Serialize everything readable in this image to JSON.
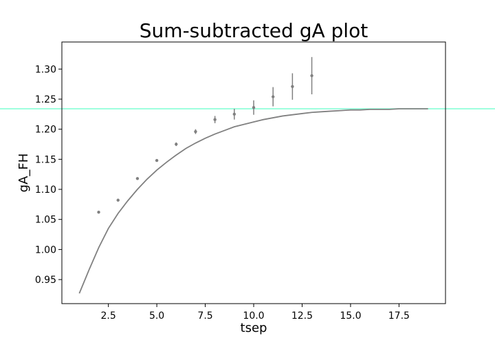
{
  "chart_data": {
    "type": "scatter",
    "title": "Sum-subtracted gA plot",
    "xlabel": "tsep",
    "ylabel": "gA_FH",
    "xlim": [
      0.1,
      19.9
    ],
    "ylim": [
      0.91,
      1.345
    ],
    "xticks": [
      2.5,
      5.0,
      7.5,
      10.0,
      12.5,
      15.0,
      17.5
    ],
    "xtick_labels": [
      "2.5",
      "5.0",
      "7.5",
      "10.0",
      "12.5",
      "15.0",
      "17.5"
    ],
    "yticks": [
      0.95,
      1.0,
      1.05,
      1.1,
      1.15,
      1.2,
      1.25,
      1.3
    ],
    "ytick_labels": [
      "0.95",
      "1.00",
      "1.05",
      "1.10",
      "1.15",
      "1.20",
      "1.25",
      "1.30"
    ],
    "grid": false,
    "points": {
      "x": [
        2,
        3,
        4,
        5,
        6,
        7,
        8,
        9,
        10,
        11,
        12,
        13
      ],
      "y": [
        1.062,
        1.082,
        1.118,
        1.148,
        1.175,
        1.196,
        1.216,
        1.225,
        1.236,
        1.254,
        1.271,
        1.289
      ],
      "yerr": [
        0.001,
        0.001,
        0.002,
        0.002,
        0.003,
        0.004,
        0.006,
        0.009,
        0.012,
        0.016,
        0.022,
        0.031
      ],
      "color": "#808080"
    },
    "fit_curve": {
      "x": [
        1.0,
        1.5,
        2.0,
        2.5,
        3.0,
        3.5,
        4.0,
        4.5,
        5.0,
        5.5,
        6.0,
        6.5,
        7.0,
        7.5,
        8.0,
        8.5,
        9.0,
        9.5,
        10.0,
        10.5,
        11.0,
        11.5,
        12.0,
        12.5,
        13.0,
        13.5,
        14.0,
        14.5,
        15.0,
        15.5,
        16.0,
        16.5,
        17.0,
        17.5,
        18.0,
        18.5,
        19.0
      ],
      "y": [
        0.927,
        0.966,
        1.003,
        1.035,
        1.06,
        1.081,
        1.1,
        1.117,
        1.132,
        1.145,
        1.157,
        1.168,
        1.177,
        1.185,
        1.192,
        1.198,
        1.204,
        1.208,
        1.212,
        1.216,
        1.219,
        1.222,
        1.224,
        1.226,
        1.228,
        1.229,
        1.23,
        1.231,
        1.232,
        1.232,
        1.233,
        1.233,
        1.233,
        1.234,
        1.234,
        1.234,
        1.234
      ],
      "color": "#808080"
    },
    "reference_line": {
      "y": 1.234,
      "color": "#7fffd4"
    }
  }
}
